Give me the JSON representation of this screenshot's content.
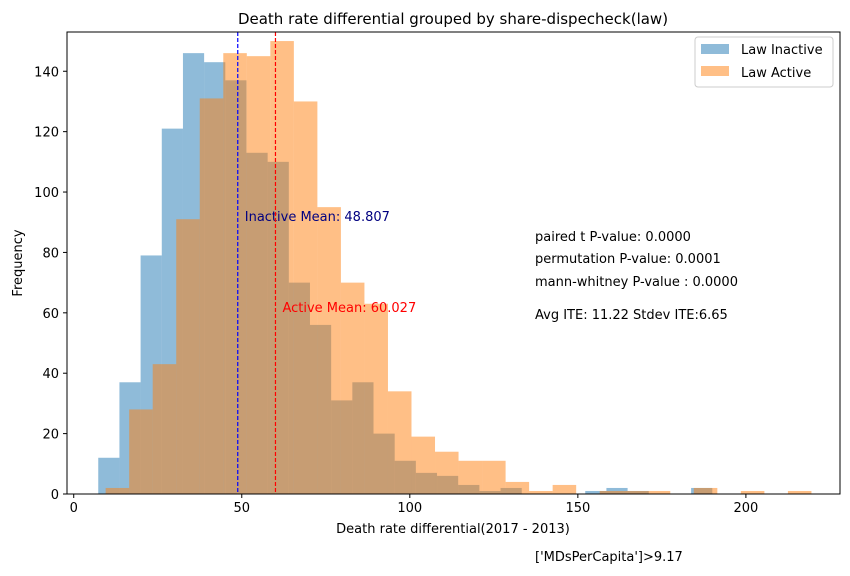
{
  "chart_data": {
    "type": "histogram",
    "title": "Death rate differential grouped by share-dispecheck(law)",
    "xlabel": "Death rate differential(2017 - 2013)",
    "ylabel": "Frequency",
    "xlim": [
      -2,
      228
    ],
    "ylim": [
      0,
      153
    ],
    "x_ticks": [
      0,
      50,
      100,
      150,
      200
    ],
    "y_ticks": [
      0,
      20,
      40,
      60,
      80,
      100,
      120,
      140
    ],
    "grid": false,
    "legend": {
      "placement": "top-right",
      "entries": [
        "Law Inactive",
        "Law Active"
      ]
    },
    "series": [
      {
        "name": "Law Inactive",
        "color": "#1f77b4",
        "alpha": 0.5,
        "bin_edges": [
          7.3,
          13.6,
          19.9,
          26.2,
          32.5,
          38.8,
          45.1,
          51.4,
          57.7,
          64.0,
          70.3,
          76.6,
          82.9,
          89.2,
          95.5,
          101.8,
          108.1,
          114.4,
          120.7,
          127.0,
          133.3,
          139.6,
          145.9,
          152.2,
          158.5,
          164.8,
          171.1,
          177.4,
          183.7,
          190.0,
          196.3
        ],
        "counts": [
          12,
          37,
          79,
          121,
          146,
          143,
          137,
          113,
          110,
          70,
          56,
          31,
          37,
          20,
          11,
          7,
          6,
          3,
          1,
          2,
          0,
          0,
          0,
          1,
          2,
          1,
          0,
          0,
          2,
          0
        ]
      },
      {
        "name": "Law Active",
        "color": "#ff7f0e",
        "alpha": 0.5,
        "bin_edges": [
          9.5,
          16.5,
          23.5,
          30.5,
          37.5,
          44.5,
          51.5,
          58.5,
          65.5,
          72.5,
          79.5,
          86.5,
          93.5,
          100.5,
          107.5,
          114.5,
          121.5,
          128.5,
          135.5,
          142.5,
          149.5,
          156.5,
          163.5,
          170.5,
          177.5,
          184.5,
          191.5,
          198.5,
          205.5,
          212.5,
          219.5
        ],
        "counts": [
          2,
          28,
          43,
          91,
          131,
          146,
          145,
          150,
          130,
          95,
          70,
          63,
          34,
          19,
          14,
          11,
          11,
          4,
          1,
          3,
          0,
          1,
          1,
          1,
          0,
          2,
          0,
          1,
          0,
          1
        ]
      }
    ],
    "reference_lines": [
      {
        "x": 48.807,
        "color": "#0000ff",
        "style": "dashed",
        "label": "Inactive Mean: 48.807",
        "label_color": "#000080",
        "label_y": 92
      },
      {
        "x": 60.027,
        "color": "#ff0000",
        "style": "dashed",
        "label": "Active Mean: 60.027",
        "label_color": "#ff0000",
        "label_y": 62
      }
    ],
    "annotations": [
      "paired t P-value: 0.0000",
      "permutation P-value: 0.0001",
      "mann-whitney P-value : 0.0000",
      "Avg ITE: 11.22 Stdev ITE:6.65"
    ]
  },
  "footnote": "['MDsPerCapita']>9.17"
}
